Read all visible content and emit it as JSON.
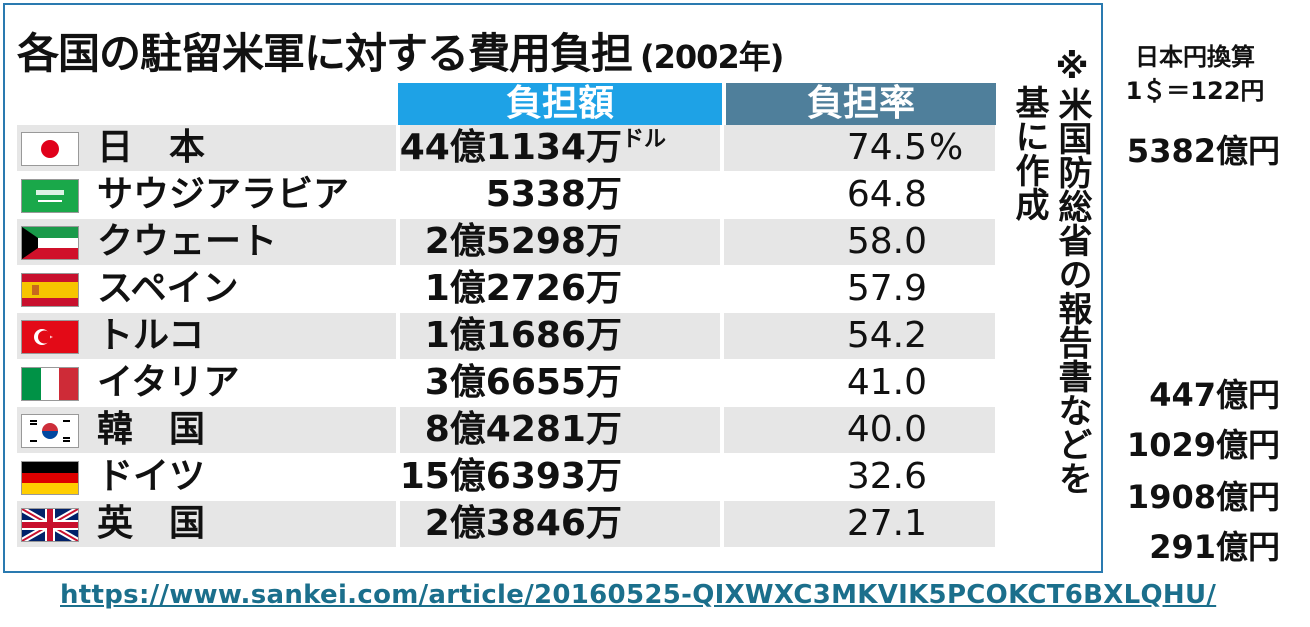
{
  "title": {
    "main": "各国の駐留米軍に対する費用負担",
    "year": "(2002年)"
  },
  "headers": {
    "amount": "負担額",
    "rate": "負担率"
  },
  "rows": [
    {
      "flag": "japan-flag",
      "country": "日　本",
      "amount": "44億1134万",
      "unit": "ドル",
      "rate": "74.5",
      "pct": "%"
    },
    {
      "flag": "saudi-arabia-flag",
      "country": "サウジアラビア",
      "amount": "5338万",
      "unit": "",
      "rate": "64.8",
      "pct": ""
    },
    {
      "flag": "kuwait-flag",
      "country": "クウェート",
      "amount": "2億5298万",
      "unit": "",
      "rate": "58.0",
      "pct": ""
    },
    {
      "flag": "spain-flag",
      "country": "スペイン",
      "amount": "1億2726万",
      "unit": "",
      "rate": "57.9",
      "pct": ""
    },
    {
      "flag": "turkey-flag",
      "country": "トルコ",
      "amount": "1億1686万",
      "unit": "",
      "rate": "54.2",
      "pct": ""
    },
    {
      "flag": "italy-flag",
      "country": "イタリア",
      "amount": "3億6655万",
      "unit": "",
      "rate": "41.0",
      "pct": ""
    },
    {
      "flag": "korea-flag",
      "country": "韓　国",
      "amount": "8億4281万",
      "unit": "",
      "rate": "40.0",
      "pct": ""
    },
    {
      "flag": "germany-flag",
      "country": "ドイツ",
      "amount": "15億6393万",
      "unit": "",
      "rate": "32.6",
      "pct": ""
    },
    {
      "flag": "uk-flag",
      "country": "英　国",
      "amount": "2億3846万",
      "unit": "",
      "rate": "27.1",
      "pct": ""
    }
  ],
  "note": {
    "line1": "※米国防総省の報告書などを",
    "line2": "基に作成"
  },
  "conversion": {
    "line1": "日本円換算",
    "line2": "1＄＝122円"
  },
  "yen_values": {
    "japan": "5382億円",
    "italy": "447億円",
    "korea": "1029億円",
    "germany": "1908億円",
    "uk": "291億円"
  },
  "source_url": "https://www.sankei.com/article/20160525-QIXWXC3MKVIK5PCOKCT6BXLQHU/",
  "colors": {
    "amount_header": "#1ea2e6",
    "rate_header": "#4f7f9b",
    "frame": "#2a7ab0",
    "link": "#1b6f8c"
  }
}
